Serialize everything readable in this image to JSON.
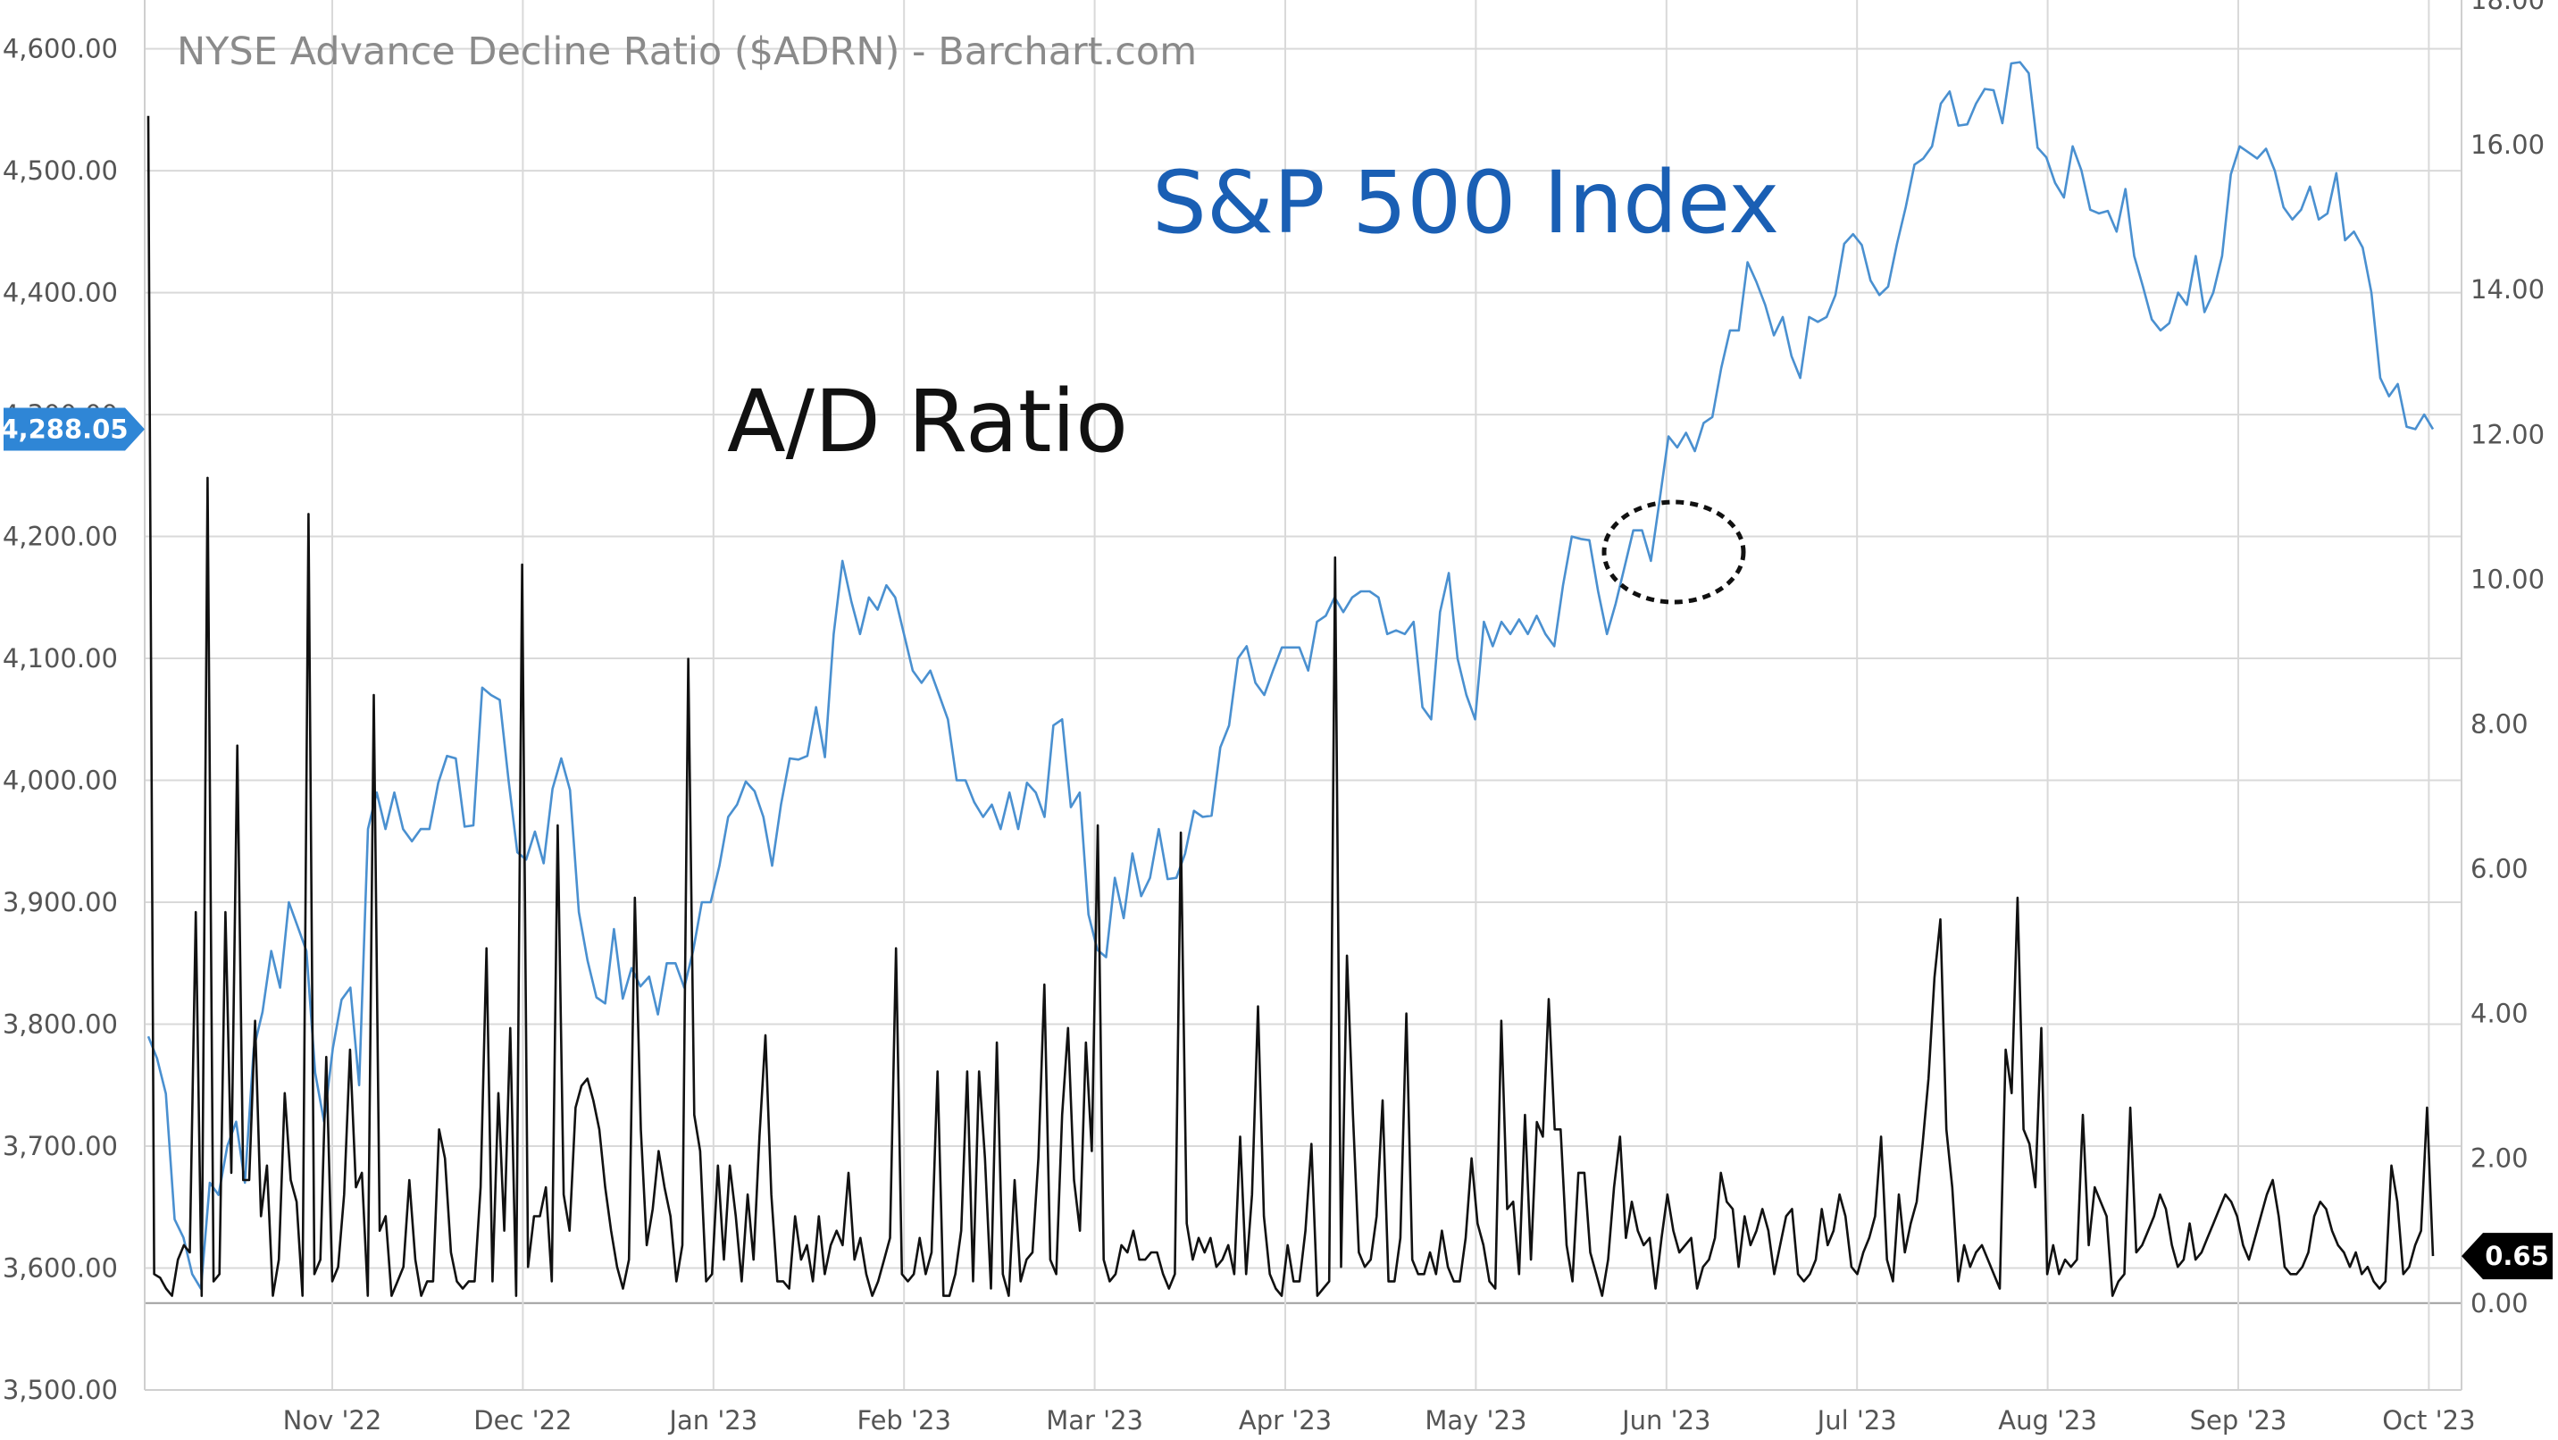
{
  "title": "NYSE Advance Decline Ratio ($ADRN) - Barchart.com",
  "annotations": {
    "sp_label": "S&P 500 Index",
    "ad_label": "A/D Ratio"
  },
  "colors": {
    "sp500_line": "#4a90d0",
    "ad_line": "#111111",
    "left_badge": "#2f86d6",
    "right_badge": "#000000"
  },
  "chart_data": {
    "type": "line",
    "title": "NYSE Advance Decline Ratio ($ADRN) - Barchart.com",
    "grid": true,
    "x_ticks": [
      "Nov '22",
      "Dec '22",
      "Jan '23",
      "Feb '23",
      "Mar '23",
      "Apr '23",
      "May '23",
      "Jun '23",
      "Jul '23",
      "Aug '23",
      "Sep '23",
      "Oct '23"
    ],
    "left_axis": {
      "min": 3500,
      "max": 4640,
      "ticks": [
        "3,500.00",
        "3,600.00",
        "3,700.00",
        "3,800.00",
        "3,900.00",
        "4,000.00",
        "4,100.00",
        "4,200.00",
        "4,300.00",
        "4,400.00",
        "4,500.00",
        "4,600.00"
      ],
      "last_value_label": "4,288.05"
    },
    "right_axis": {
      "min": -1.2,
      "max": 18,
      "ticks": [
        "0.00",
        "2.00",
        "4.00",
        "6.00",
        "8.00",
        "10.00",
        "12.00",
        "14.00",
        "16.00",
        "18.00"
      ],
      "last_value_label": "0.65"
    },
    "series": [
      {
        "key": "sp500",
        "axis": "left",
        "values": [
          3790,
          3772,
          3743,
          3640,
          3625,
          3595,
          3583,
          3670,
          3660,
          3700,
          3720,
          3670,
          3780,
          3810,
          3860,
          3830,
          3900,
          3880,
          3860,
          3760,
          3720,
          3780,
          3820,
          3830,
          3750,
          3960,
          3990,
          3960,
          3990,
          3960,
          3950,
          3960,
          3960,
          3998,
          4020,
          4018,
          3962,
          3963,
          4076,
          4070,
          4066,
          4000,
          3941,
          3935,
          3958,
          3932,
          3993,
          4018,
          3992,
          3892,
          3852,
          3822,
          3817,
          3878,
          3821,
          3846,
          3831,
          3839,
          3808,
          3850,
          3850,
          3830,
          3860,
          3900,
          3900,
          3930,
          3970,
          3980,
          3999,
          3991,
          3970,
          3930,
          3980,
          4018,
          4017,
          4020,
          4060,
          4019,
          4120,
          4180,
          4147,
          4120,
          4150,
          4140,
          4160,
          4150,
          4120,
          4090,
          4080,
          4090,
          4070,
          4050,
          4000,
          4000,
          3982,
          3970,
          3980,
          3960,
          3990,
          3960,
          3998,
          3990,
          3970,
          4045,
          4050,
          3978,
          3990,
          3890,
          3861,
          3855,
          3920,
          3887,
          3940,
          3905,
          3920,
          3960,
          3919,
          3920,
          3940,
          3975,
          3970,
          3971,
          4027,
          4045,
          4100,
          4110,
          4080,
          4070,
          4090,
          4109,
          4109,
          4109,
          4090,
          4130,
          4135,
          4150,
          4138,
          4150,
          4155,
          4155,
          4150,
          4120,
          4123,
          4120,
          4130,
          4060,
          4050,
          4138,
          4170,
          4100,
          4070,
          4050,
          4130,
          4110,
          4130,
          4120,
          4132,
          4120,
          4135,
          4120,
          4110,
          4160,
          4200,
          4198,
          4197,
          4155,
          4120,
          4145,
          4175,
          4205,
          4205,
          4180,
          4230,
          4282,
          4273,
          4285,
          4270,
          4293,
          4298,
          4338,
          4369,
          4369,
          4425,
          4409,
          4390,
          4365,
          4380,
          4348,
          4330,
          4380,
          4376,
          4380,
          4398,
          4440,
          4448,
          4439,
          4410,
          4398,
          4405,
          4440,
          4470,
          4505,
          4510,
          4520,
          4555,
          4565,
          4537,
          4538,
          4555,
          4567,
          4566,
          4539,
          4588,
          4589,
          4580,
          4519,
          4511,
          4490,
          4478,
          4520,
          4500,
          4468,
          4465,
          4467,
          4450,
          4485,
          4430,
          4405,
          4378,
          4369,
          4375,
          4400,
          4390,
          4430,
          4384,
          4400,
          4430,
          4497,
          4520,
          4515,
          4510,
          4518,
          4500,
          4470,
          4460,
          4468,
          4487,
          4460,
          4465,
          4498,
          4443,
          4450,
          4437,
          4400,
          4330,
          4315,
          4325,
          4290,
          4288,
          4300,
          4288
        ]
      },
      {
        "key": "ad_ratio",
        "axis": "right",
        "values": [
          16.4,
          0.4,
          0.35,
          0.2,
          0.1,
          0.6,
          0.8,
          0.7,
          5.4,
          0.1,
          11.4,
          0.3,
          0.4,
          5.4,
          1.8,
          7.7,
          1.7,
          1.7,
          3.9,
          1.2,
          1.9,
          0.1,
          0.6,
          2.9,
          1.7,
          1.4,
          0.1,
          10.9,
          0.4,
          0.6,
          3.4,
          0.3,
          0.5,
          1.5,
          3.5,
          1.6,
          1.8,
          0.1,
          8.4,
          1.0,
          1.2,
          0.1,
          0.3,
          0.5,
          1.7,
          0.6,
          0.1,
          0.3,
          0.3,
          2.4,
          2.0,
          0.7,
          0.3,
          0.2,
          0.3,
          0.3,
          1.6,
          4.9,
          0.3,
          2.9,
          1.0,
          3.8,
          0.1,
          10.2,
          0.5,
          1.2,
          1.2,
          1.6,
          0.3,
          6.6,
          1.5,
          1.0,
          2.7,
          3.0,
          3.1,
          2.8,
          2.4,
          1.6,
          1.0,
          0.5,
          0.2,
          0.6,
          5.6,
          2.4,
          0.8,
          1.3,
          2.1,
          1.6,
          1.2,
          0.3,
          0.8,
          8.9,
          2.6,
          2.1,
          0.3,
          0.4,
          1.9,
          0.6,
          1.9,
          1.2,
          0.3,
          1.5,
          0.6,
          2.3,
          3.7,
          1.5,
          0.3,
          0.3,
          0.2,
          1.2,
          0.6,
          0.8,
          0.3,
          1.2,
          0.4,
          0.8,
          1.0,
          0.8,
          1.8,
          0.6,
          0.9,
          0.4,
          0.1,
          0.3,
          0.6,
          0.9,
          4.9,
          0.4,
          0.3,
          0.4,
          0.9,
          0.4,
          0.7,
          3.2,
          0.1,
          0.1,
          0.4,
          1.0,
          3.2,
          0.3,
          3.2,
          2.0,
          0.2,
          3.6,
          0.4,
          0.1,
          1.7,
          0.3,
          0.6,
          0.7,
          2.0,
          4.4,
          0.6,
          0.4,
          2.6,
          3.8,
          1.7,
          1.0,
          3.6,
          2.1,
          6.6,
          0.6,
          0.3,
          0.4,
          0.8,
          0.7,
          1.0,
          0.6,
          0.6,
          0.7,
          0.7,
          0.4,
          0.2,
          0.4,
          6.5,
          1.1,
          0.6,
          0.9,
          0.7,
          0.9,
          0.5,
          0.6,
          0.8,
          0.4,
          2.3,
          0.4,
          1.5,
          4.1,
          1.2,
          0.4,
          0.2,
          0.1,
          0.8,
          0.3,
          0.3,
          1.0,
          2.2,
          0.1,
          0.2,
          0.3,
          10.3,
          0.5,
          4.8,
          2.6,
          0.7,
          0.5,
          0.6,
          1.2,
          2.8,
          0.3,
          0.3,
          0.9,
          4.0,
          0.6,
          0.4,
          0.4,
          0.7,
          0.4,
          1.0,
          0.5,
          0.3,
          0.3,
          0.9,
          2.0,
          1.1,
          0.8,
          0.3,
          0.2,
          3.9,
          1.3,
          1.4,
          0.4,
          2.6,
          0.6,
          2.5,
          2.3,
          4.2,
          2.4,
          2.4,
          0.8,
          0.3,
          1.8,
          1.8,
          0.7,
          0.4,
          0.1,
          0.6,
          1.6,
          2.3,
          0.9,
          1.4,
          1.0,
          0.8,
          0.9,
          0.2,
          0.9,
          1.5,
          1.0,
          0.7,
          0.8,
          0.9,
          0.2,
          0.5,
          0.6,
          0.9,
          1.8,
          1.4,
          1.3,
          0.5,
          1.2,
          0.8,
          1.0,
          1.3,
          1.0,
          0.4,
          0.8,
          1.2,
          1.3,
          0.4,
          0.3,
          0.4,
          0.6,
          1.3,
          0.8,
          1.0,
          1.5,
          1.2,
          0.5,
          0.4,
          0.7,
          0.9,
          1.2,
          2.3,
          0.6,
          0.3,
          1.5,
          0.7,
          1.1,
          1.4,
          2.2,
          3.1,
          4.5,
          5.3,
          2.4,
          1.6,
          0.3,
          0.8,
          0.5,
          0.7,
          0.8,
          0.6,
          0.4,
          0.2,
          3.5,
          2.9,
          5.6,
          2.4,
          2.2,
          1.6,
          3.8,
          0.4,
          0.8,
          0.4,
          0.6,
          0.5,
          0.6,
          2.6,
          0.8,
          1.6,
          1.4,
          1.2,
          0.1,
          0.3,
          0.4,
          2.7,
          0.7,
          0.8,
          1.0,
          1.2,
          1.5,
          1.3,
          0.8,
          0.5,
          0.6,
          1.1,
          0.6,
          0.7,
          0.9,
          1.1,
          1.3,
          1.5,
          1.4,
          1.2,
          0.8,
          0.6,
          0.9,
          1.2,
          1.5,
          1.7,
          1.2,
          0.5,
          0.4,
          0.4,
          0.5,
          0.7,
          1.2,
          1.4,
          1.3,
          1.0,
          0.8,
          0.7,
          0.5,
          0.7,
          0.4,
          0.5,
          0.3,
          0.2,
          0.3,
          1.9,
          1.4,
          0.4,
          0.5,
          0.8,
          1.0,
          2.7,
          0.65
        ]
      }
    ]
  }
}
